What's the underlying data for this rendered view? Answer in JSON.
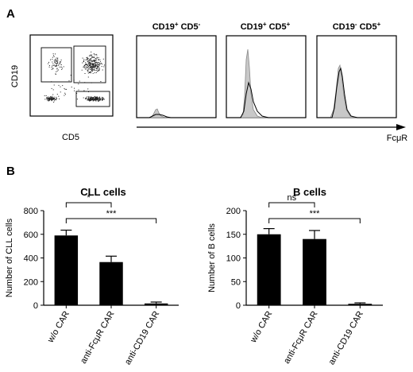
{
  "panel_a": {
    "label": "A",
    "dot_plot": {
      "y_axis_label": "CD19",
      "x_axis_label": "CD5"
    },
    "histograms": [
      {
        "title_main": "CD19",
        "title_sup1": "+",
        "title_mid": " CD5",
        "title_sup2": "-"
      },
      {
        "title_main": "CD19",
        "title_sup1": "+",
        "title_mid": " CD5",
        "title_sup2": "+"
      },
      {
        "title_main": "CD19",
        "title_sup1": "-",
        "title_mid": " CD5",
        "title_sup2": "+"
      }
    ],
    "x_axis_label": "FcμR"
  },
  "panel_b": {
    "label": "B"
  },
  "chart_data": [
    {
      "type": "bar",
      "title": "CLL cells",
      "ylabel": "Number of CLL cells",
      "categories": [
        "w/o CAR",
        "anti-FcμR CAR",
        "anti-CD19 CAR"
      ],
      "values": [
        590,
        365,
        15
      ],
      "errors": [
        45,
        50,
        12
      ],
      "ylim": [
        0,
        800
      ],
      "yticks": [
        "0",
        "200",
        "400",
        "600",
        "800"
      ],
      "significance": [
        {
          "from": 0,
          "to": 1,
          "label": "*"
        },
        {
          "from": 0,
          "to": 2,
          "label": "***"
        }
      ]
    },
    {
      "type": "bar",
      "title": "B cells",
      "ylabel": "Number of B cells",
      "categories": [
        "w/o CAR",
        "anti-FcμR CAR",
        "anti-CD19 CAR"
      ],
      "values": [
        150,
        140,
        3
      ],
      "errors": [
        12,
        18,
        2
      ],
      "ylim": [
        0,
        200
      ],
      "yticks": [
        "0",
        "50",
        "100",
        "150",
        "200"
      ],
      "significance": [
        {
          "from": 0,
          "to": 1,
          "label": "ns"
        },
        {
          "from": 0,
          "to": 2,
          "label": "***"
        }
      ]
    }
  ]
}
